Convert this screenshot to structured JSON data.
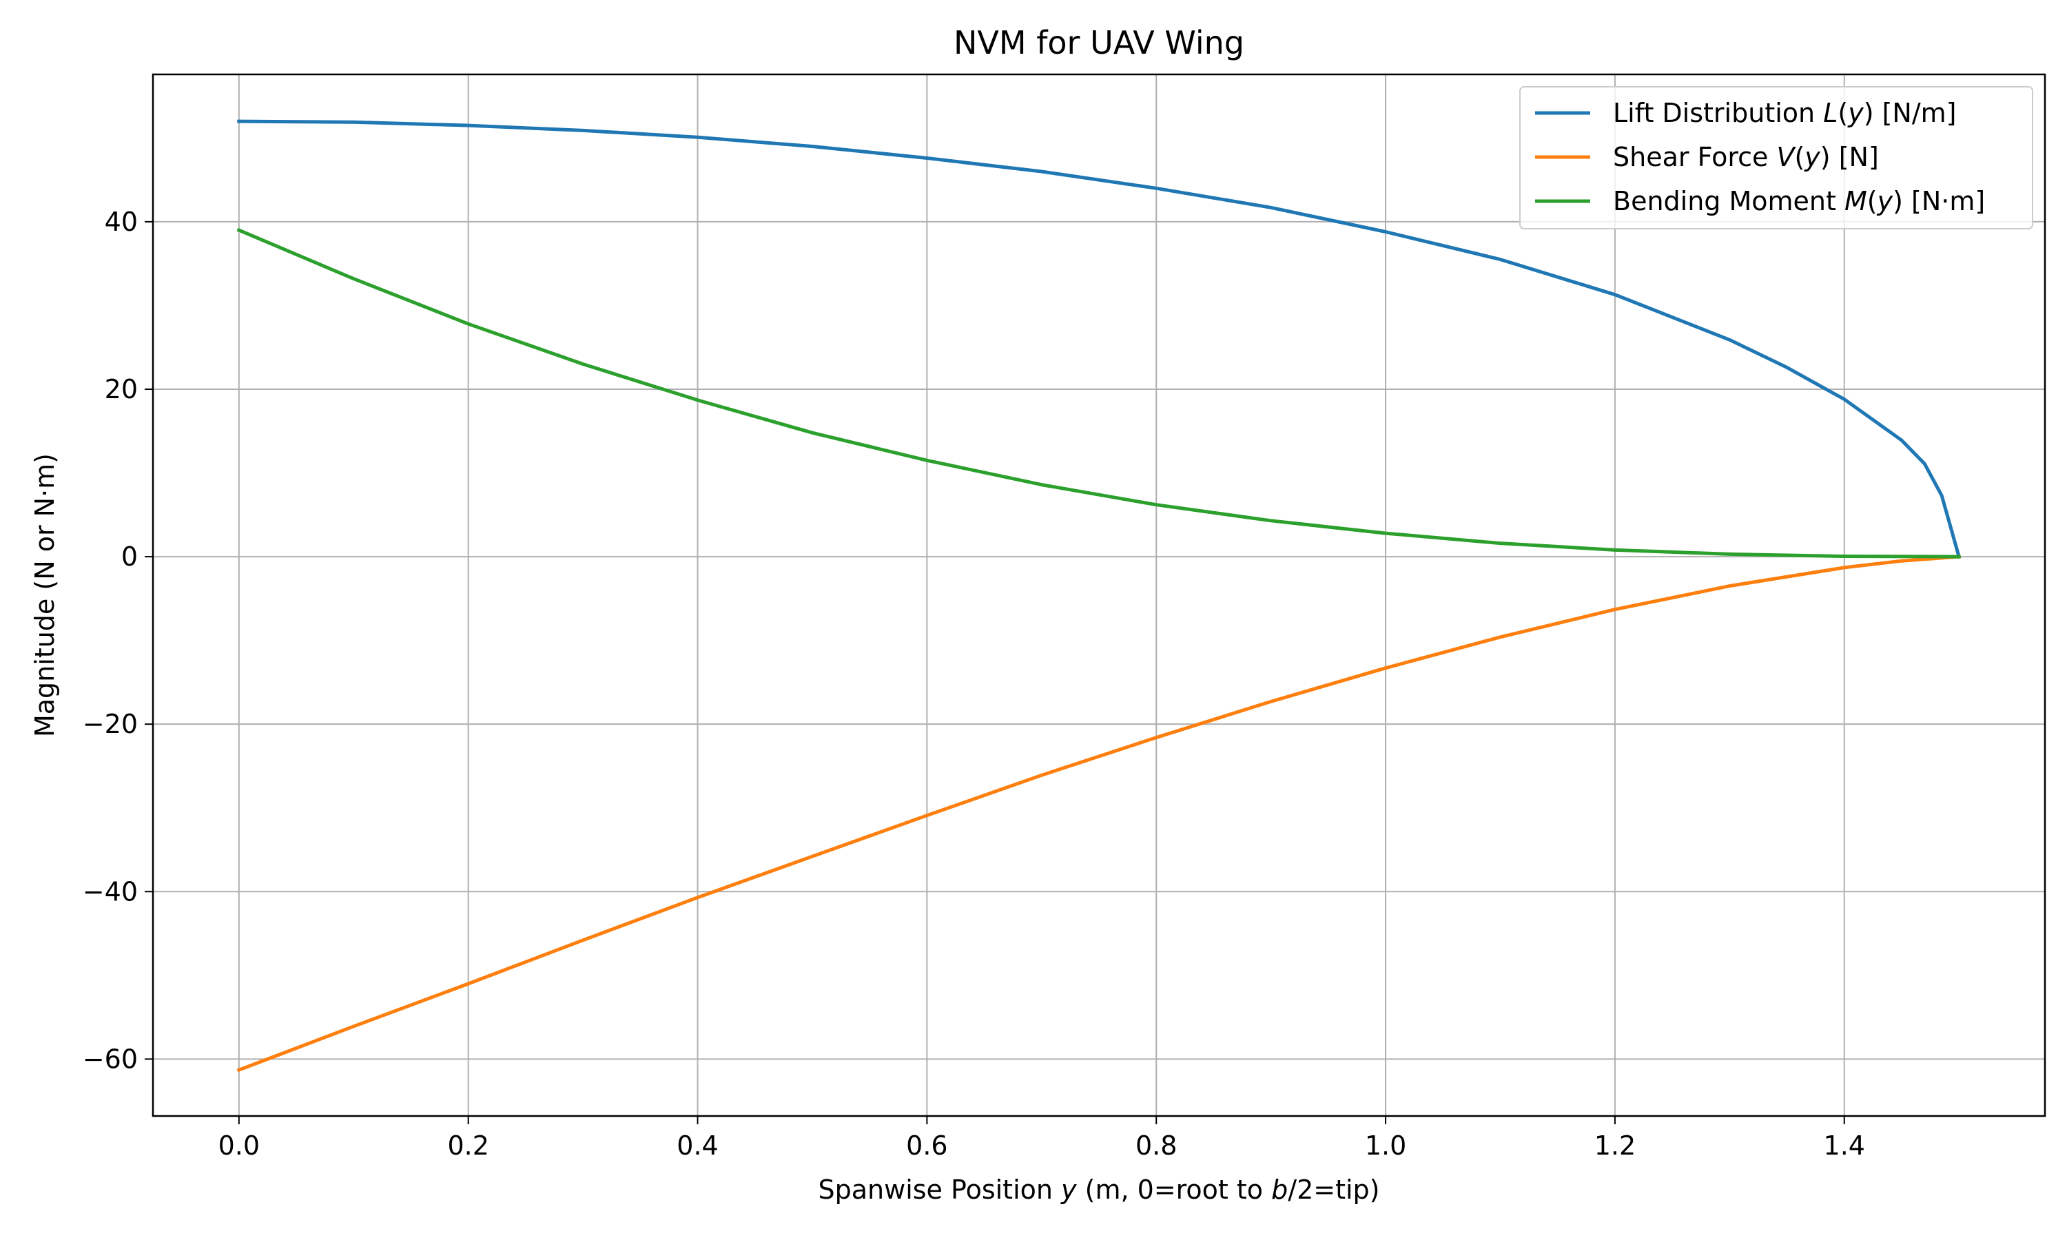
{
  "chart_data": {
    "type": "line",
    "title": "NVM for UAV Wing",
    "xlabel": {
      "pre": "Spanwise Position ",
      "var1": "y",
      "mid": " (m, 0=root to ",
      "var2": "b",
      "post": "/2=tip)"
    },
    "ylabel": "Magnitude (N or N·m)",
    "xlim": [
      -0.075,
      1.575
    ],
    "ylim": [
      -66.8,
      57.6
    ],
    "xticks": [
      0.0,
      0.2,
      0.4,
      0.6,
      0.8,
      1.0,
      1.2,
      1.4
    ],
    "xtick_labels": [
      "0.0",
      "0.2",
      "0.4",
      "0.6",
      "0.8",
      "1.0",
      "1.2",
      "1.4"
    ],
    "yticks": [
      -60,
      -40,
      -20,
      0,
      20,
      40
    ],
    "ytick_labels": [
      "−60",
      "−40",
      "−20",
      "0",
      "20",
      "40"
    ],
    "grid": true,
    "legend_position": "top-right",
    "series": [
      {
        "name": "Lift Distribution L(y) [N/m]",
        "name_parts": {
          "pre": "Lift Distribution ",
          "var": "L",
          "post": " [N/m]"
        },
        "color": "#1f77b4",
        "x": [
          0.0,
          0.1,
          0.2,
          0.3,
          0.4,
          0.5,
          0.6,
          0.7,
          0.8,
          0.9,
          1.0,
          1.1,
          1.2,
          1.3,
          1.35,
          1.4,
          1.45,
          1.47,
          1.485,
          1.5
        ],
        "y": [
          52.0,
          51.9,
          51.5,
          50.9,
          50.1,
          49.0,
          47.6,
          46.0,
          44.0,
          41.7,
          38.8,
          35.5,
          31.3,
          25.9,
          22.6,
          18.8,
          13.9,
          11.1,
          7.3,
          0.0
        ]
      },
      {
        "name": "Shear Force V(y) [N]",
        "name_parts": {
          "pre": "Shear Force ",
          "var": "V",
          "post": " [N]"
        },
        "color": "#ff7f0e",
        "x": [
          0.0,
          0.1,
          0.2,
          0.3,
          0.4,
          0.5,
          0.6,
          0.7,
          0.8,
          0.9,
          1.0,
          1.1,
          1.2,
          1.3,
          1.4,
          1.45,
          1.5
        ],
        "y": [
          -61.3,
          -56.1,
          -51.0,
          -45.8,
          -40.7,
          -35.8,
          -30.9,
          -26.1,
          -21.6,
          -17.3,
          -13.3,
          -9.6,
          -6.3,
          -3.5,
          -1.3,
          -0.5,
          0.0
        ]
      },
      {
        "name": "Bending Moment M(y) [N·m]",
        "name_parts": {
          "pre": "Bending Moment ",
          "var": "M",
          "post": " [N·m]"
        },
        "color": "#2ca02c",
        "x": [
          0.0,
          0.1,
          0.2,
          0.3,
          0.4,
          0.5,
          0.6,
          0.7,
          0.8,
          0.9,
          1.0,
          1.1,
          1.2,
          1.3,
          1.4,
          1.5
        ],
        "y": [
          39.0,
          33.2,
          27.8,
          23.0,
          18.7,
          14.8,
          11.5,
          8.6,
          6.2,
          4.3,
          2.8,
          1.6,
          0.8,
          0.3,
          0.05,
          0.0
        ]
      }
    ]
  }
}
